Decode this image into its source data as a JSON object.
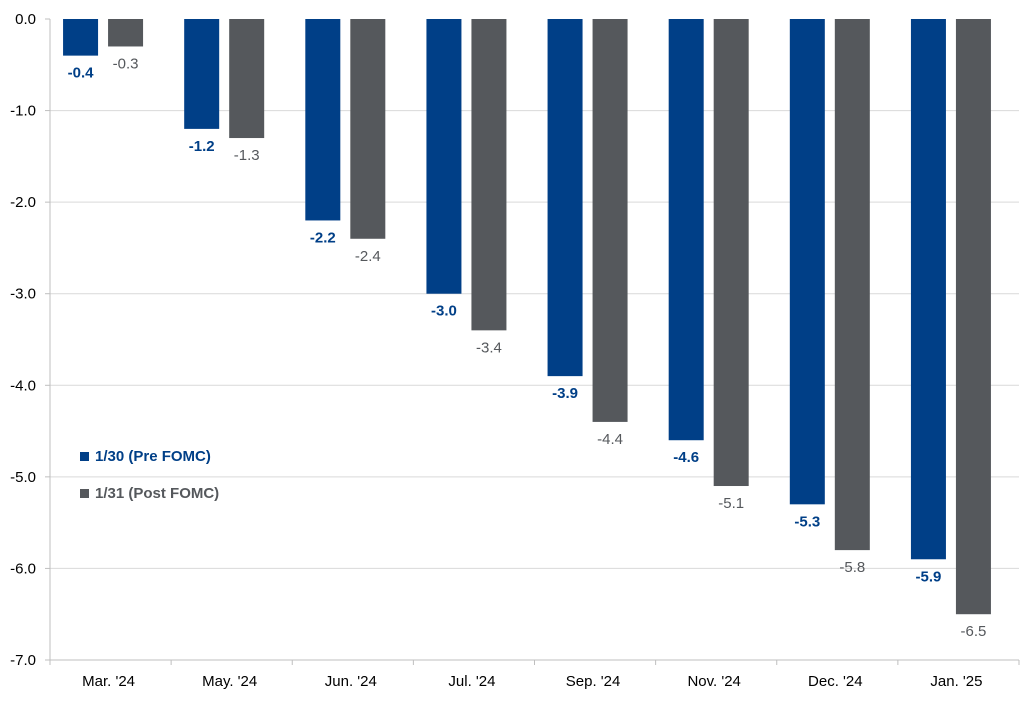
{
  "chart_data": {
    "type": "bar",
    "categories": [
      "Mar. '24",
      "May. '24",
      "Jun. '24",
      "Jul. '24",
      "Sep. '24",
      "Nov. '24",
      "Dec. '24",
      "Jan. '25"
    ],
    "series": [
      {
        "name": "1/30 (Pre FOMC)",
        "color": "#003F87",
        "label_bold": true,
        "values": [
          -0.4,
          -1.2,
          -2.2,
          -3.0,
          -3.9,
          -4.6,
          -5.3,
          -5.9
        ],
        "labels": [
          "-0.4",
          "-1.2",
          "-2.2",
          "-3.0",
          "-3.9",
          "-4.6",
          "-5.3",
          "-5.9"
        ]
      },
      {
        "name": "1/31 (Post FOMC)",
        "color": "#55585C",
        "label_bold": false,
        "values": [
          -0.3,
          -1.3,
          -2.4,
          -3.4,
          -4.4,
          -5.1,
          -5.8,
          -6.5
        ],
        "labels": [
          "-0.3",
          "-1.3",
          "-2.4",
          "-3.4",
          "-4.4",
          "-5.1",
          "-5.8",
          "-6.5"
        ]
      }
    ],
    "ylim": [
      -7.0,
      0.0
    ],
    "yticks": [
      0.0,
      -1.0,
      -2.0,
      -3.0,
      -4.0,
      -5.0,
      -6.0,
      -7.0
    ],
    "ytick_labels": [
      "0.0",
      "-1.0",
      "-2.0",
      "-3.0",
      "-4.0",
      "-5.0",
      "-6.0",
      "-7.0"
    ],
    "grid": true,
    "legend_position": "bottom-left",
    "title": "",
    "xlabel": "",
    "ylabel": ""
  }
}
